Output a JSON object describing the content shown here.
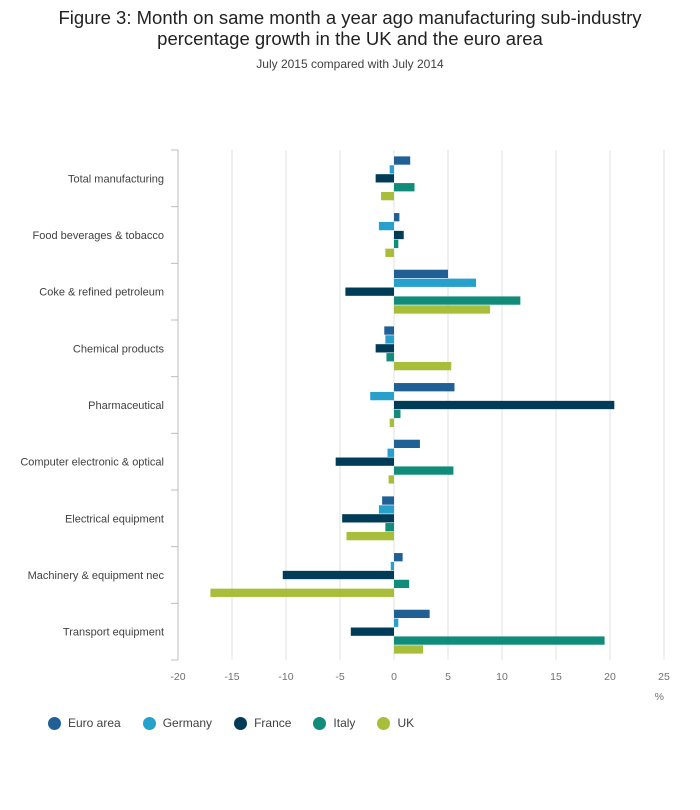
{
  "title_line1": "Figure 3: Month on same month a year ago manufacturing sub-industry",
  "title_line2": "percentage growth in the UK and the euro area",
  "subtitle": "July 2015 compared with July 2014",
  "chart_data": {
    "type": "bar",
    "orientation": "horizontal",
    "categories": [
      "Total manufacturing",
      "Food beverages & tobacco",
      "Coke & refined petroleum",
      "Chemical products",
      "Pharmaceutical",
      "Computer electronic & optical",
      "Electrical equipment",
      "Machinery & equipment nec",
      "Transport equipment"
    ],
    "series": [
      {
        "name": "Euro area",
        "color": "#206095",
        "values": [
          1.5,
          0.5,
          5.0,
          -0.9,
          5.6,
          2.4,
          -1.1,
          0.8,
          3.3
        ]
      },
      {
        "name": "Germany",
        "color": "#27a0cc",
        "values": [
          -0.4,
          -1.4,
          7.6,
          -0.8,
          -2.2,
          -0.6,
          -1.4,
          -0.3,
          0.4
        ]
      },
      {
        "name": "France",
        "color": "#003c57",
        "values": [
          -1.7,
          0.9,
          -4.5,
          -1.7,
          20.4,
          -5.4,
          -4.8,
          -10.3,
          -4.0
        ]
      },
      {
        "name": "Italy",
        "color": "#118c7b",
        "values": [
          1.9,
          0.4,
          11.7,
          -0.7,
          0.6,
          5.5,
          -0.8,
          1.4,
          19.5
        ]
      },
      {
        "name": "UK",
        "color": "#a8bd3a",
        "values": [
          -1.2,
          -0.8,
          8.9,
          5.3,
          -0.4,
          -0.5,
          -4.4,
          -17.0,
          2.7
        ]
      }
    ],
    "x_axis": {
      "min": -20,
      "max": 25,
      "ticks": [
        -20,
        -15,
        -10,
        -5,
        0,
        5,
        10,
        15,
        20,
        25
      ],
      "unit": "%"
    },
    "grid": true,
    "legend_position": "bottom-left"
  }
}
